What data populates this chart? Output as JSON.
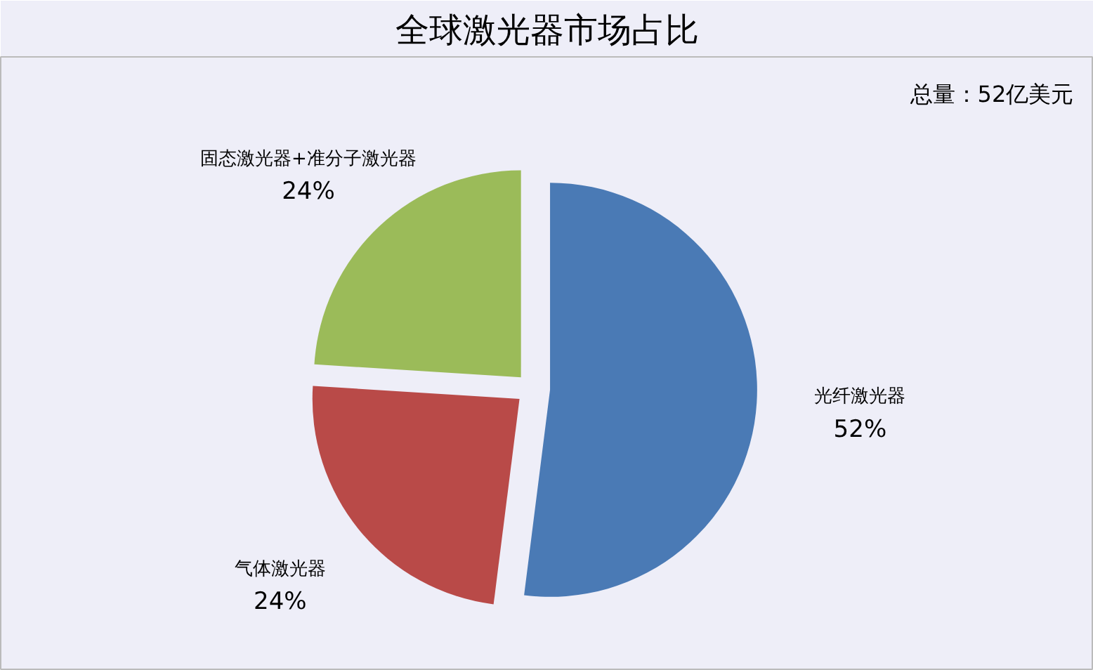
{
  "chart_data": {
    "type": "pie",
    "title": "全球激光器市场占比",
    "categories": [
      "光纤激光器",
      "气体激光器",
      "固态激光器+准分子激光器"
    ],
    "values": [
      52,
      24,
      24
    ],
    "colors": [
      "#4a7ab5",
      "#b94a48",
      "#9bbb59"
    ],
    "value_labels": [
      "52%",
      "24%",
      "24%"
    ],
    "annotations": [
      "总量：52亿美元"
    ]
  }
}
